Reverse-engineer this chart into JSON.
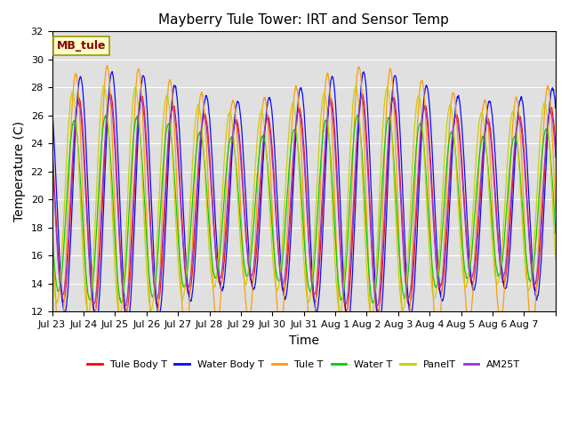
{
  "title": "Mayberry Tule Tower: IRT and Sensor Temp",
  "xlabel": "Time",
  "ylabel": "Temperature (C)",
  "ylim": [
    12,
    32
  ],
  "yticks": [
    12,
    14,
    16,
    18,
    20,
    22,
    24,
    26,
    28,
    30,
    32
  ],
  "site_label": "MB_tule",
  "legend_entries": [
    "Tule Body T",
    "Water Body T",
    "Tule T",
    "Water T",
    "PanelT",
    "AM25T"
  ],
  "line_colors": [
    "#ff0000",
    "#0000ff",
    "#ff9900",
    "#00cc00",
    "#cccc00",
    "#9933cc"
  ],
  "t_start": 0,
  "t_end": 16,
  "base_temp": 20.5,
  "amplitude_day": 7.5,
  "period": 1.0,
  "phase_shifts": [
    0.0,
    -0.05,
    0.1,
    0.15,
    0.2,
    0.02
  ],
  "amp_factors": [
    1.0,
    1.15,
    1.35,
    0.85,
    1.05,
    0.95
  ],
  "base_offsets": [
    0.0,
    0.5,
    -0.5,
    -0.5,
    0.2,
    0.1
  ],
  "x_tick_positions": [
    0,
    1,
    2,
    3,
    4,
    5,
    6,
    7,
    8,
    9,
    10,
    11,
    12,
    13,
    14,
    15,
    16
  ],
  "x_tick_labels": [
    "Jul 23",
    "Jul 24",
    "Jul 25",
    "Jul 26",
    "Jul 27",
    "Jul 28",
    "Jul 29",
    "Jul 30",
    "Jul 31",
    "Aug 1",
    "Aug 2",
    "Aug 3",
    "Aug 4",
    "Aug 5",
    "Aug 6",
    "Aug 7",
    ""
  ],
  "n_points": 1600,
  "facecolor": "#e0e0e0",
  "grid_color": "#ffffff",
  "linewidth": 0.9
}
